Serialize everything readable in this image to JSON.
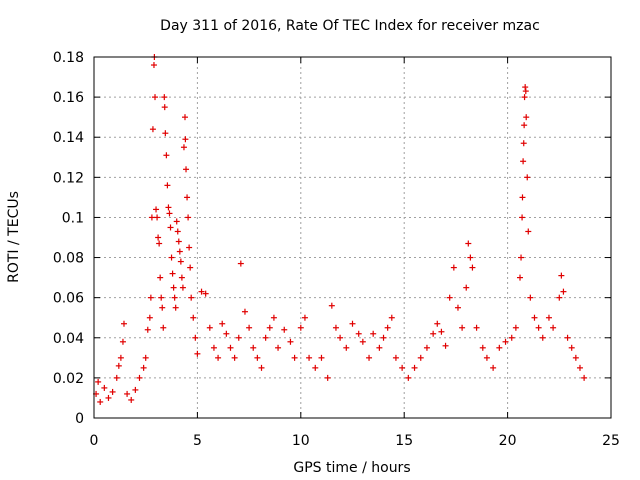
{
  "chart_data": {
    "type": "scatter",
    "title": "Day 311 of 2016, Rate Of TEC Index for receiver mzac",
    "xlabel": "GPS time / hours",
    "ylabel": "ROTI / TECUs",
    "xlim": [
      0,
      25
    ],
    "ylim": [
      0,
      0.18
    ],
    "xticks": [
      0,
      5,
      10,
      15,
      20,
      25
    ],
    "yticks": [
      0,
      0.02,
      0.04,
      0.06,
      0.08,
      0.1,
      0.12,
      0.14,
      0.16,
      0.18
    ],
    "grid": true,
    "marker": "+",
    "series": [
      {
        "name": "ROTI",
        "color": "#e00000",
        "points": [
          [
            0.1,
            0.012
          ],
          [
            0.2,
            0.018
          ],
          [
            0.3,
            0.008
          ],
          [
            0.5,
            0.015
          ],
          [
            0.7,
            0.01
          ],
          [
            0.9,
            0.013
          ],
          [
            1.1,
            0.02
          ],
          [
            1.2,
            0.026
          ],
          [
            1.3,
            0.03
          ],
          [
            1.4,
            0.038
          ],
          [
            1.45,
            0.047
          ],
          [
            1.6,
            0.012
          ],
          [
            1.8,
            0.009
          ],
          [
            2.0,
            0.014
          ],
          [
            2.2,
            0.02
          ],
          [
            2.4,
            0.025
          ],
          [
            2.5,
            0.03
          ],
          [
            2.6,
            0.044
          ],
          [
            2.7,
            0.05
          ],
          [
            2.75,
            0.06
          ],
          [
            2.8,
            0.1
          ],
          [
            2.85,
            0.144
          ],
          [
            2.9,
            0.176
          ],
          [
            2.92,
            0.18
          ],
          [
            2.95,
            0.16
          ],
          [
            3.0,
            0.104
          ],
          [
            3.05,
            0.1
          ],
          [
            3.1,
            0.09
          ],
          [
            3.15,
            0.087
          ],
          [
            3.2,
            0.07
          ],
          [
            3.25,
            0.06
          ],
          [
            3.3,
            0.055
          ],
          [
            3.35,
            0.045
          ],
          [
            3.4,
            0.16
          ],
          [
            3.42,
            0.155
          ],
          [
            3.45,
            0.142
          ],
          [
            3.5,
            0.131
          ],
          [
            3.55,
            0.116
          ],
          [
            3.6,
            0.105
          ],
          [
            3.65,
            0.102
          ],
          [
            3.7,
            0.095
          ],
          [
            3.75,
            0.08
          ],
          [
            3.8,
            0.072
          ],
          [
            3.85,
            0.065
          ],
          [
            3.9,
            0.06
          ],
          [
            3.95,
            0.055
          ],
          [
            4.0,
            0.098
          ],
          [
            4.05,
            0.093
          ],
          [
            4.1,
            0.088
          ],
          [
            4.15,
            0.083
          ],
          [
            4.2,
            0.078
          ],
          [
            4.25,
            0.07
          ],
          [
            4.3,
            0.065
          ],
          [
            4.35,
            0.135
          ],
          [
            4.4,
            0.15
          ],
          [
            4.42,
            0.139
          ],
          [
            4.45,
            0.124
          ],
          [
            4.5,
            0.11
          ],
          [
            4.55,
            0.1
          ],
          [
            4.6,
            0.085
          ],
          [
            4.65,
            0.075
          ],
          [
            4.7,
            0.06
          ],
          [
            4.8,
            0.05
          ],
          [
            4.9,
            0.04
          ],
          [
            5.0,
            0.032
          ],
          [
            5.2,
            0.063
          ],
          [
            5.4,
            0.062
          ],
          [
            5.6,
            0.045
          ],
          [
            5.8,
            0.035
          ],
          [
            6.0,
            0.03
          ],
          [
            6.2,
            0.047
          ],
          [
            6.4,
            0.042
          ],
          [
            6.6,
            0.035
          ],
          [
            6.8,
            0.03
          ],
          [
            7.0,
            0.04
          ],
          [
            7.1,
            0.077
          ],
          [
            7.3,
            0.053
          ],
          [
            7.5,
            0.045
          ],
          [
            7.7,
            0.035
          ],
          [
            7.9,
            0.03
          ],
          [
            8.1,
            0.025
          ],
          [
            8.3,
            0.04
          ],
          [
            8.5,
            0.045
          ],
          [
            8.7,
            0.05
          ],
          [
            8.9,
            0.035
          ],
          [
            9.2,
            0.044
          ],
          [
            9.5,
            0.038
          ],
          [
            9.7,
            0.03
          ],
          [
            10.0,
            0.045
          ],
          [
            10.2,
            0.05
          ],
          [
            10.4,
            0.03
          ],
          [
            10.7,
            0.025
          ],
          [
            11.0,
            0.03
          ],
          [
            11.3,
            0.02
          ],
          [
            11.5,
            0.056
          ],
          [
            11.7,
            0.045
          ],
          [
            11.9,
            0.04
          ],
          [
            12.2,
            0.035
          ],
          [
            12.5,
            0.047
          ],
          [
            12.8,
            0.042
          ],
          [
            13.0,
            0.038
          ],
          [
            13.3,
            0.03
          ],
          [
            13.5,
            0.042
          ],
          [
            13.8,
            0.035
          ],
          [
            14.0,
            0.04
          ],
          [
            14.2,
            0.045
          ],
          [
            14.4,
            0.05
          ],
          [
            14.6,
            0.03
          ],
          [
            14.9,
            0.025
          ],
          [
            15.2,
            0.02
          ],
          [
            15.5,
            0.025
          ],
          [
            15.8,
            0.03
          ],
          [
            16.1,
            0.035
          ],
          [
            16.4,
            0.042
          ],
          [
            16.6,
            0.047
          ],
          [
            16.8,
            0.043
          ],
          [
            17.0,
            0.036
          ],
          [
            17.2,
            0.06
          ],
          [
            17.4,
            0.075
          ],
          [
            17.6,
            0.055
          ],
          [
            17.8,
            0.045
          ],
          [
            18.0,
            0.065
          ],
          [
            18.1,
            0.087
          ],
          [
            18.2,
            0.08
          ],
          [
            18.3,
            0.075
          ],
          [
            18.5,
            0.045
          ],
          [
            18.8,
            0.035
          ],
          [
            19.0,
            0.03
          ],
          [
            19.3,
            0.025
          ],
          [
            19.6,
            0.035
          ],
          [
            19.9,
            0.038
          ],
          [
            20.2,
            0.04
          ],
          [
            20.4,
            0.045
          ],
          [
            20.6,
            0.07
          ],
          [
            20.65,
            0.08
          ],
          [
            20.7,
            0.1
          ],
          [
            20.72,
            0.11
          ],
          [
            20.75,
            0.128
          ],
          [
            20.78,
            0.137
          ],
          [
            20.8,
            0.146
          ],
          [
            20.82,
            0.16
          ],
          [
            20.85,
            0.165
          ],
          [
            20.88,
            0.163
          ],
          [
            20.9,
            0.15
          ],
          [
            20.95,
            0.12
          ],
          [
            21.0,
            0.093
          ],
          [
            21.1,
            0.06
          ],
          [
            21.3,
            0.05
          ],
          [
            21.5,
            0.045
          ],
          [
            21.7,
            0.04
          ],
          [
            22.0,
            0.05
          ],
          [
            22.2,
            0.045
          ],
          [
            22.5,
            0.06
          ],
          [
            22.6,
            0.071
          ],
          [
            22.7,
            0.063
          ],
          [
            22.9,
            0.04
          ],
          [
            23.1,
            0.035
          ],
          [
            23.3,
            0.03
          ],
          [
            23.5,
            0.025
          ],
          [
            23.7,
            0.02
          ]
        ]
      }
    ]
  }
}
